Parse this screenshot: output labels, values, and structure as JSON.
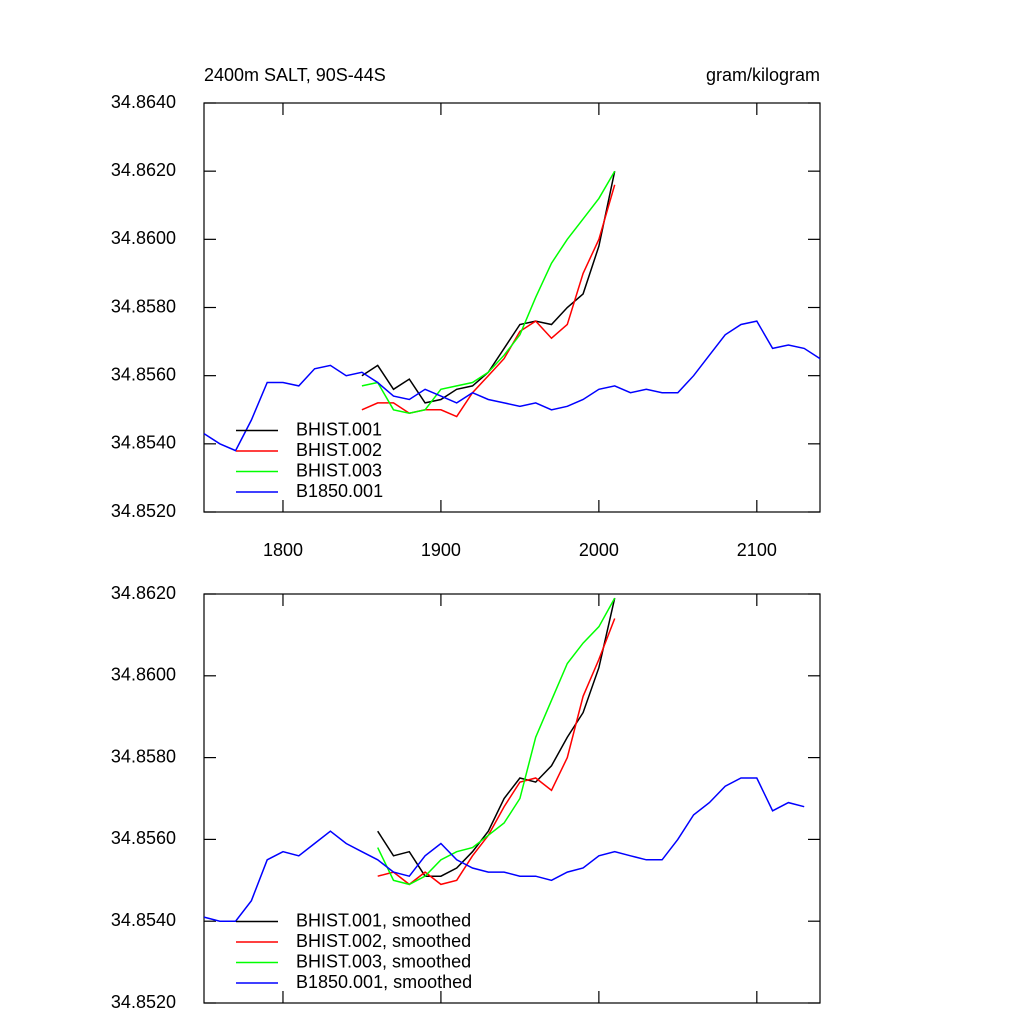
{
  "chart_data": [
    {
      "type": "line",
      "title": "2400m SALT, 90S-44S",
      "units": "gram/kilogram",
      "x": [
        1750,
        1760,
        1770,
        1780,
        1790,
        1800,
        1810,
        1820,
        1830,
        1840,
        1850,
        1860,
        1870,
        1880,
        1890,
        1900,
        1910,
        1920,
        1930,
        1940,
        1950,
        1960,
        1970,
        1980,
        1990,
        2000,
        2010,
        2020,
        2030,
        2040,
        2050,
        2060,
        2070,
        2080,
        2090,
        2100,
        2110,
        2120,
        2130,
        2140
      ],
      "xlim": [
        1750,
        2140
      ],
      "xticks": [
        1800,
        1900,
        2000,
        2100
      ],
      "xtick_labels": true,
      "ylim": [
        34.852,
        34.864
      ],
      "yticks": [
        {
          "value": 34.852,
          "label": "34.8520"
        },
        {
          "value": 34.854,
          "label": "34.8540"
        },
        {
          "value": 34.856,
          "label": "34.8560"
        },
        {
          "value": 34.858,
          "label": "34.8580"
        },
        {
          "value": 34.86,
          "label": "34.8600"
        },
        {
          "value": 34.862,
          "label": "34.8620"
        },
        {
          "value": 34.864,
          "label": "34.8640"
        }
      ],
      "legend": "lower left",
      "series": [
        {
          "name": "BHIST.001",
          "color": "#000000",
          "values": [
            null,
            null,
            null,
            null,
            null,
            null,
            null,
            null,
            null,
            null,
            34.856,
            34.8563,
            34.8556,
            34.8559,
            34.8552,
            34.8553,
            34.8556,
            34.8557,
            34.8561,
            34.8568,
            34.8575,
            34.8576,
            34.8575,
            34.858,
            34.8584,
            34.8598,
            34.862,
            null,
            null,
            null,
            null,
            null,
            null,
            null,
            null,
            null,
            null,
            null,
            null,
            null
          ]
        },
        {
          "name": "BHIST.002",
          "color": "#ff0000",
          "values": [
            null,
            null,
            null,
            null,
            null,
            null,
            null,
            null,
            null,
            null,
            34.855,
            34.8552,
            34.8552,
            34.8549,
            34.855,
            34.855,
            34.8548,
            34.8555,
            34.856,
            34.8565,
            34.8573,
            34.8576,
            34.8571,
            34.8575,
            34.859,
            34.86,
            34.8616,
            null,
            null,
            null,
            null,
            null,
            null,
            null,
            null,
            null,
            null,
            null,
            null,
            null
          ]
        },
        {
          "name": "BHIST.003",
          "color": "#00ff00",
          "values": [
            null,
            null,
            null,
            null,
            null,
            null,
            null,
            null,
            null,
            null,
            34.8557,
            34.8558,
            34.855,
            34.8549,
            34.855,
            34.8556,
            34.8557,
            34.8558,
            34.8561,
            34.8566,
            34.8572,
            34.8583,
            34.8593,
            34.86,
            34.8606,
            34.8612,
            34.862,
            null,
            null,
            null,
            null,
            null,
            null,
            null,
            null,
            null,
            null,
            null,
            null,
            null
          ]
        },
        {
          "name": "B1850.001",
          "color": "#0000ff",
          "values": [
            34.8543,
            34.854,
            34.8538,
            34.8547,
            34.8558,
            34.8558,
            34.8557,
            34.8562,
            34.8563,
            34.856,
            34.8561,
            34.8558,
            34.8554,
            34.8553,
            34.8556,
            34.8554,
            34.8552,
            34.8555,
            34.8553,
            34.8552,
            34.8551,
            34.8552,
            34.855,
            34.8551,
            34.8553,
            34.8556,
            34.8557,
            34.8555,
            34.8556,
            34.8555,
            34.8555,
            34.856,
            34.8566,
            34.8572,
            34.8575,
            34.8576,
            34.8568,
            34.8569,
            34.8568,
            34.8565
          ]
        }
      ]
    },
    {
      "type": "line",
      "x": [
        1750,
        1760,
        1770,
        1780,
        1790,
        1800,
        1810,
        1820,
        1830,
        1840,
        1850,
        1860,
        1870,
        1880,
        1890,
        1900,
        1910,
        1920,
        1930,
        1940,
        1950,
        1960,
        1970,
        1980,
        1990,
        2000,
        2010,
        2020,
        2030,
        2040,
        2050,
        2060,
        2070,
        2080,
        2090,
        2100,
        2110,
        2120,
        2130,
        2140
      ],
      "xlim": [
        1750,
        2140
      ],
      "xticks": [
        1800,
        1900,
        2000,
        2100
      ],
      "xtick_labels": false,
      "ylim": [
        34.852,
        34.862
      ],
      "yticks": [
        {
          "value": 34.852,
          "label": "34.8520"
        },
        {
          "value": 34.854,
          "label": "34.8540"
        },
        {
          "value": 34.856,
          "label": "34.8560"
        },
        {
          "value": 34.858,
          "label": "34.8580"
        },
        {
          "value": 34.86,
          "label": "34.8600"
        },
        {
          "value": 34.862,
          "label": "34.8620"
        }
      ],
      "legend": "lower left",
      "series": [
        {
          "name": "BHIST.001, smoothed",
          "color": "#000000",
          "values": [
            null,
            null,
            null,
            null,
            null,
            null,
            null,
            null,
            null,
            null,
            null,
            34.8562,
            34.8556,
            34.8557,
            34.8551,
            34.8551,
            34.8553,
            34.8557,
            34.8562,
            34.857,
            34.8575,
            34.8574,
            34.8578,
            34.8585,
            34.8591,
            34.8602,
            34.8619,
            null,
            null,
            null,
            null,
            null,
            null,
            null,
            null,
            null,
            null,
            null,
            null,
            null
          ]
        },
        {
          "name": "BHIST.002, smoothed",
          "color": "#ff0000",
          "values": [
            null,
            null,
            null,
            null,
            null,
            null,
            null,
            null,
            null,
            null,
            null,
            34.8551,
            34.8552,
            34.8549,
            34.8552,
            34.8549,
            34.855,
            34.8556,
            34.8561,
            34.8568,
            34.8574,
            34.8575,
            34.8572,
            34.858,
            34.8595,
            34.8604,
            34.8614,
            null,
            null,
            null,
            null,
            null,
            null,
            null,
            null,
            null,
            null,
            null,
            null,
            null
          ]
        },
        {
          "name": "BHIST.003, smoothed",
          "color": "#00ff00",
          "values": [
            null,
            null,
            null,
            null,
            null,
            null,
            null,
            null,
            null,
            null,
            null,
            34.8558,
            34.855,
            34.8549,
            34.8551,
            34.8555,
            34.8557,
            34.8558,
            34.8561,
            34.8564,
            34.857,
            34.8585,
            34.8594,
            34.8603,
            34.8608,
            34.8612,
            34.8619,
            null,
            null,
            null,
            null,
            null,
            null,
            null,
            null,
            null,
            null,
            null,
            null,
            null
          ]
        },
        {
          "name": "B1850.001, smoothed",
          "color": "#0000ff",
          "values": [
            34.8541,
            34.854,
            34.854,
            34.8545,
            34.8555,
            34.8557,
            34.8556,
            34.8559,
            34.8562,
            34.8559,
            34.8557,
            34.8555,
            34.8552,
            34.8551,
            34.8556,
            34.8559,
            34.8555,
            34.8553,
            34.8552,
            34.8552,
            34.8551,
            34.8551,
            34.855,
            34.8552,
            34.8553,
            34.8556,
            34.8557,
            34.8556,
            34.8555,
            34.8555,
            34.856,
            34.8566,
            34.8569,
            34.8573,
            34.8575,
            34.8575,
            34.8567,
            34.8569,
            34.8568,
            null
          ]
        }
      ]
    }
  ]
}
